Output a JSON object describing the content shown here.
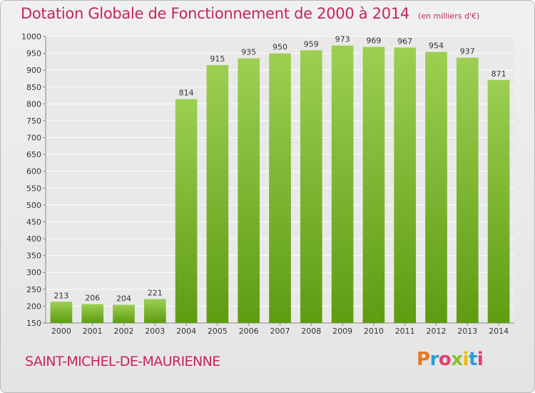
{
  "header": {
    "title": "Dotation Globale de Fonctionnement de 2000 à 2014",
    "unit": "(en milliers d'€)"
  },
  "footer": {
    "commune": "SAINT-MICHEL-DE-MAURIENNE",
    "logo": "Proxiti"
  },
  "colors": {
    "title": "#c8235e",
    "bar_top": "#9ccf52",
    "bar_bottom": "#5e9c12"
  },
  "chart_data": {
    "type": "bar",
    "title": "Dotation Globale de Fonctionnement de 2000 à 2014",
    "subtitle": "(en milliers d'€)",
    "categories": [
      "2000",
      "2001",
      "2002",
      "2003",
      "2004",
      "2005",
      "2006",
      "2007",
      "2008",
      "2009",
      "2010",
      "2011",
      "2012",
      "2013",
      "2014"
    ],
    "values": [
      213,
      206,
      204,
      221,
      814,
      915,
      935,
      950,
      959,
      973,
      969,
      967,
      954,
      937,
      871
    ],
    "ylim": [
      150,
      1000
    ],
    "yticks": [
      150,
      200,
      250,
      300,
      350,
      400,
      450,
      500,
      550,
      600,
      650,
      700,
      750,
      800,
      850,
      900,
      950,
      1000
    ],
    "grid": true,
    "legend": "none"
  }
}
